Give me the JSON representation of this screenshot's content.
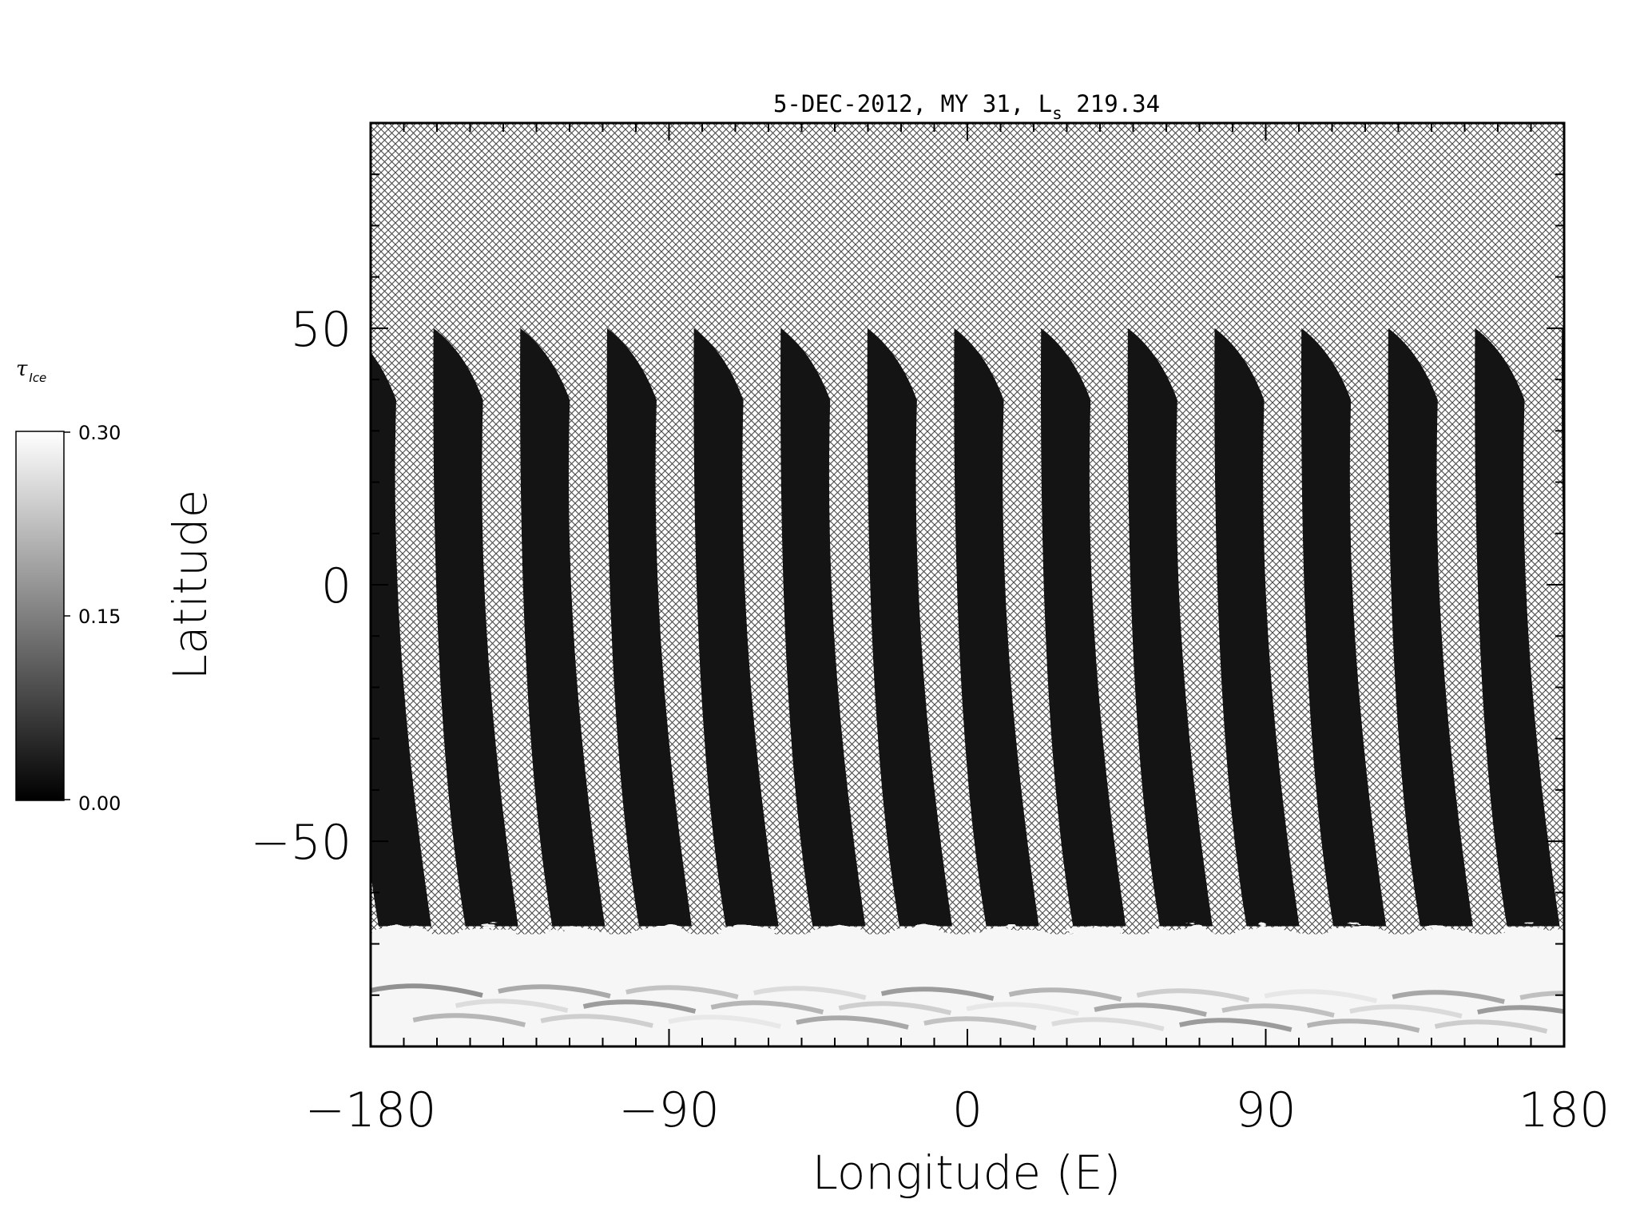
{
  "title": {
    "prefix": "5-DEC-2012, MY 31,  L",
    "subscript": "s",
    "value": " 219.34"
  },
  "axes": {
    "xlabel": "Longitude (E)",
    "ylabel": "Latitude",
    "xlim": [
      -180,
      180
    ],
    "ylim": [
      -90,
      90
    ],
    "xticks": [
      "-180",
      "-90",
      "0",
      "90",
      "180"
    ],
    "xtick_values": [
      -180,
      -90,
      0,
      90,
      180
    ],
    "yticks": [
      "-50",
      "0",
      "50"
    ],
    "ytick_values": [
      -50,
      0,
      50
    ]
  },
  "colorbar": {
    "title": "τ",
    "title_sub": "Ice",
    "labels": [
      "0.30",
      "0.15",
      "0.00"
    ],
    "min": 0.0,
    "max": 0.3,
    "colormap": "grayscale"
  },
  "map_data": {
    "type": "orbit-swath map",
    "missing_pattern": "crosshatch",
    "swath_count": 14,
    "swath_lat_top": 50,
    "swath_lat_bottom": -65,
    "swath_value": 0.02,
    "south_polar_cap_lat": -65,
    "south_polar_value": 0.29,
    "colors": {
      "swath": "#141414",
      "cap": "#f6f6f6",
      "hatch": "#4a4a4a",
      "frame": "#000000"
    }
  }
}
